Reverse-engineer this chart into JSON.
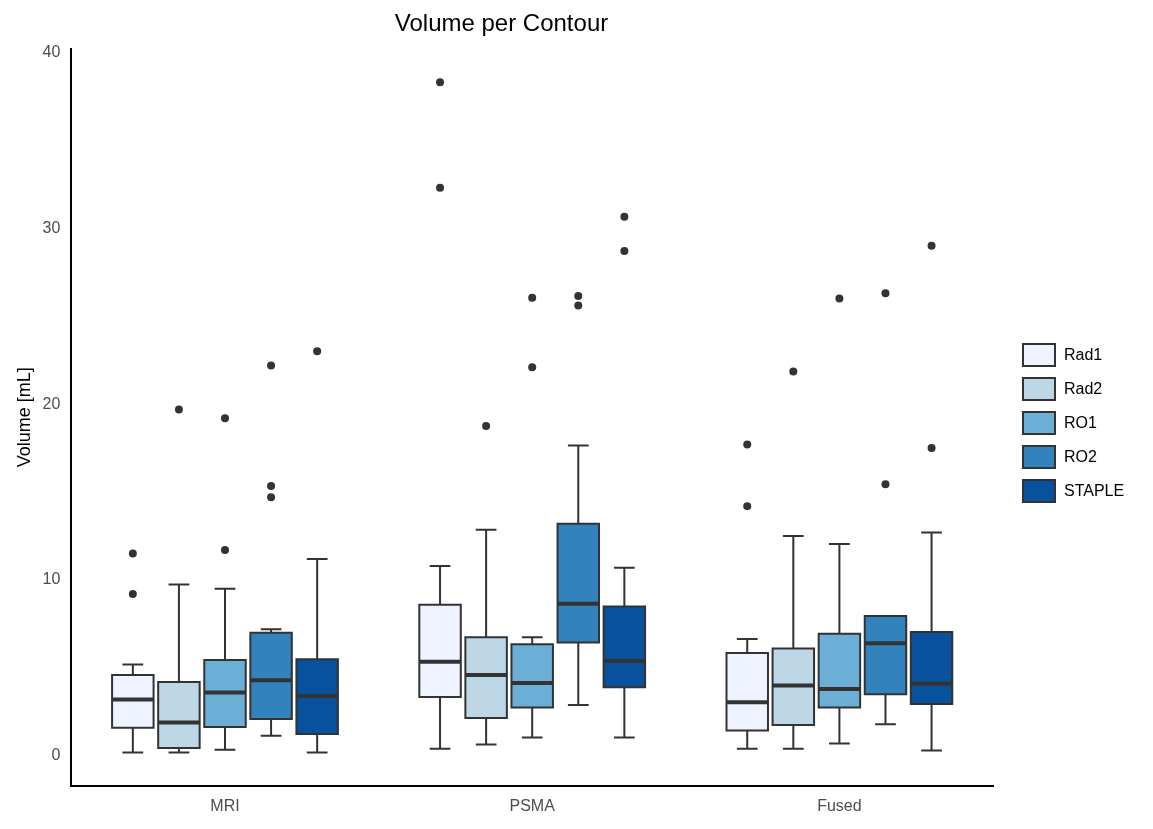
{
  "chart_data": {
    "type": "box",
    "title": "Volume per Contour",
    "ylabel": "Volume [mL]",
    "categories": [
      "MRI",
      "PSMA",
      "Fused"
    ],
    "ylim": [
      -1.7,
      40.2
    ],
    "yticks": [
      0,
      10,
      20,
      30,
      40
    ],
    "legend": "right",
    "series": [
      {
        "name": "Rad1",
        "color": "#eff3ff",
        "boxes": [
          {
            "low": 0.2,
            "q1": 1.6,
            "median": 3.2,
            "q3": 4.6,
            "high": 5.2,
            "outliers": [
              11.5,
              9.2
            ]
          },
          {
            "low": 0.4,
            "q1": 3.35,
            "median": 5.35,
            "q3": 8.6,
            "high": 10.8,
            "outliers": [
              38.3,
              32.3
            ]
          },
          {
            "low": 0.4,
            "q1": 1.45,
            "median": 3.05,
            "q3": 5.85,
            "high": 6.65,
            "outliers": [
              17.7,
              14.2
            ]
          }
        ]
      },
      {
        "name": "Rad2",
        "color": "#bdd7e7",
        "boxes": [
          {
            "low": 0.2,
            "q1": 0.45,
            "median": 1.9,
            "q3": 4.2,
            "high": 9.75,
            "outliers": [
              19.7
            ]
          },
          {
            "low": 0.65,
            "q1": 2.15,
            "median": 4.6,
            "q3": 6.75,
            "high": 12.85,
            "outliers": [
              18.75
            ]
          },
          {
            "low": 0.4,
            "q1": 1.75,
            "median": 4.0,
            "q3": 6.1,
            "high": 12.5,
            "outliers": [
              21.85
            ]
          }
        ]
      },
      {
        "name": "RO1",
        "color": "#6baed6",
        "boxes": [
          {
            "low": 0.35,
            "q1": 1.65,
            "median": 3.6,
            "q3": 5.45,
            "high": 9.5,
            "outliers": [
              19.2,
              11.7
            ]
          },
          {
            "low": 1.05,
            "q1": 2.75,
            "median": 4.15,
            "q3": 6.35,
            "high": 6.75,
            "outliers": [
              26.05,
              22.1
            ]
          },
          {
            "low": 0.7,
            "q1": 2.75,
            "median": 3.8,
            "q3": 6.95,
            "high": 12.05,
            "outliers": [
              26.0
            ]
          }
        ]
      },
      {
        "name": "RO2",
        "color": "#3182bd",
        "boxes": [
          {
            "low": 1.15,
            "q1": 2.1,
            "median": 4.3,
            "q3": 7.0,
            "high": 7.2,
            "outliers": [
              22.2,
              15.35,
              14.7
            ]
          },
          {
            "low": 2.9,
            "q1": 6.45,
            "median": 8.65,
            "q3": 13.2,
            "high": 17.65,
            "outliers": [
              26.15,
              25.6
            ]
          },
          {
            "low": 1.8,
            "q1": 3.5,
            "median": 6.4,
            "q3": 7.95,
            "high": 7.95,
            "outliers": [
              26.3,
              15.45
            ]
          }
        ]
      },
      {
        "name": "STAPLE",
        "color": "#08519c",
        "boxes": [
          {
            "low": 0.2,
            "q1": 1.25,
            "median": 3.4,
            "q3": 5.5,
            "high": 11.2,
            "outliers": [
              23.0
            ]
          },
          {
            "low": 1.05,
            "q1": 3.9,
            "median": 5.4,
            "q3": 8.5,
            "high": 10.7,
            "outliers": [
              30.65,
              28.7
            ]
          },
          {
            "low": 0.3,
            "q1": 2.95,
            "median": 4.1,
            "q3": 7.05,
            "high": 12.7,
            "outliers": [
              29.0,
              17.5
            ]
          }
        ]
      }
    ]
  }
}
